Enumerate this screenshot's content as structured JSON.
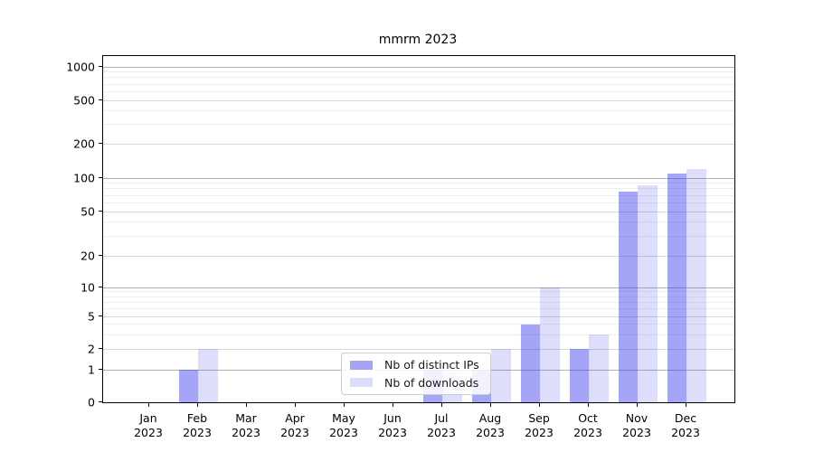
{
  "chart_data": {
    "type": "bar",
    "title": "mmrm 2023",
    "categories": [
      "Jan 2023",
      "Feb 2023",
      "Mar 2023",
      "Apr 2023",
      "May 2023",
      "Jun 2023",
      "Jul 2023",
      "Aug 2023",
      "Sep 2023",
      "Oct 2023",
      "Nov 2023",
      "Dec 2023"
    ],
    "series": [
      {
        "name": "Nb of distinct IPs",
        "legend_color": "#a5a5f8",
        "bar_color": "rgba(55,55,240,0.45)",
        "values": [
          0,
          1,
          0,
          0,
          0,
          0,
          1,
          1,
          4,
          2,
          76,
          110
        ]
      },
      {
        "name": "Nb of downloads",
        "legend_color": "#dcdcfc",
        "bar_color": "rgba(55,55,240,0.17)",
        "values": [
          0,
          2,
          0,
          0,
          0,
          0,
          1,
          2,
          10,
          3,
          86,
          120
        ]
      }
    ],
    "yscale": "symlog",
    "ylim": [
      0,
      1270
    ],
    "yticks": [
      0,
      1,
      2,
      5,
      10,
      20,
      50,
      100,
      200,
      500,
      1000
    ],
    "grid": true,
    "legend_position": "lower center"
  },
  "colors": {
    "grid_major_power10": "#b3b3b3",
    "grid_major": "#d9d9d9",
    "grid_minor": "#ededed",
    "spine": "#000000",
    "legend_border": "#cccccc"
  }
}
